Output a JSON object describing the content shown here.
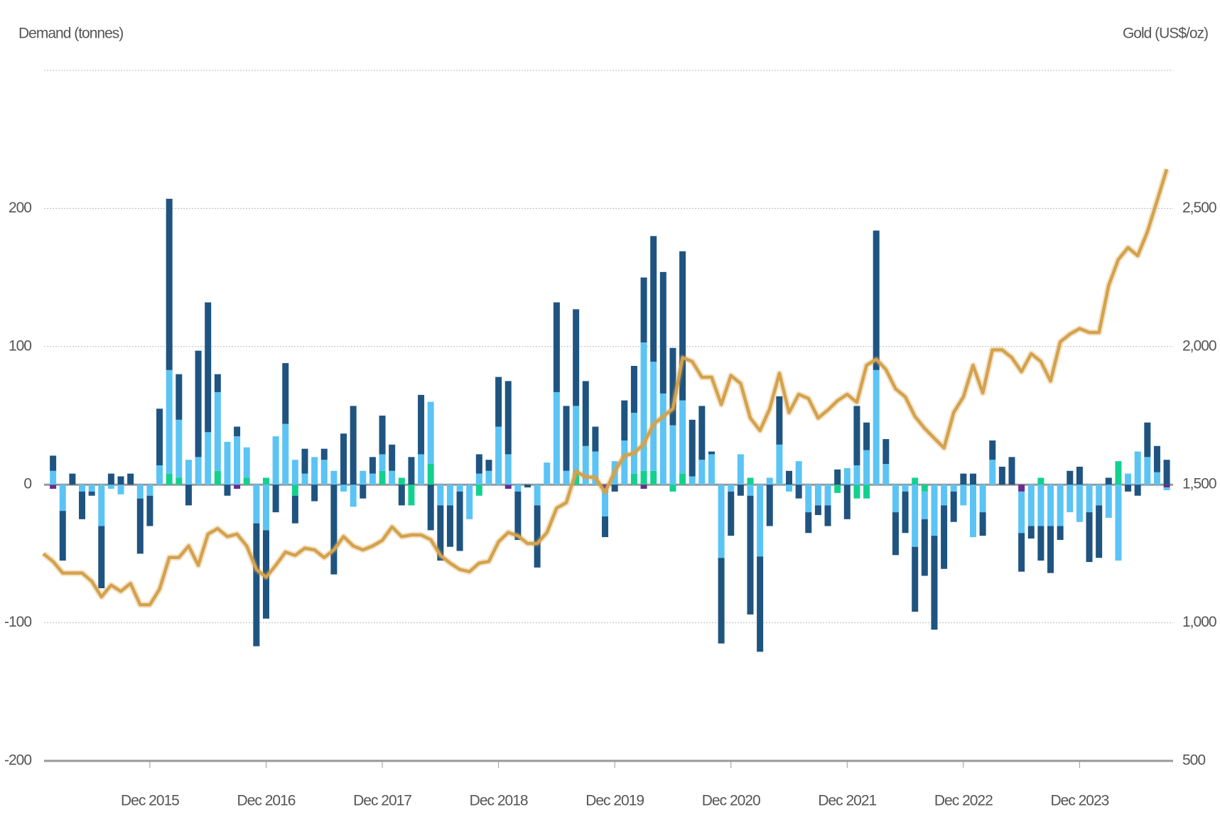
{
  "chart_data": {
    "type": "bar",
    "y_label": "Demand (tonnes)",
    "y2_label": "Gold (US$/oz)",
    "categories": [
      null,
      null,
      null,
      null,
      null,
      null,
      null,
      null,
      null,
      null,
      null,
      "Dec 2015",
      null,
      null,
      null,
      null,
      null,
      null,
      null,
      null,
      null,
      null,
      null,
      "Dec 2016",
      null,
      null,
      null,
      null,
      null,
      null,
      null,
      null,
      null,
      null,
      null,
      "Dec 2017",
      null,
      null,
      null,
      null,
      null,
      null,
      null,
      null,
      null,
      null,
      null,
      "Dec 2018",
      null,
      null,
      null,
      null,
      null,
      null,
      null,
      null,
      null,
      null,
      null,
      "Dec 2019",
      null,
      null,
      null,
      null,
      null,
      null,
      null,
      null,
      null,
      null,
      null,
      "Dec 2020",
      null,
      null,
      null,
      null,
      null,
      null,
      null,
      null,
      null,
      null,
      null,
      "Dec 2021",
      null,
      null,
      null,
      null,
      null,
      null,
      null,
      null,
      null,
      null,
      null,
      "Dec 2022",
      null,
      null,
      null,
      null,
      null,
      null,
      null,
      null,
      null,
      null,
      null,
      "Dec 2023",
      null,
      null,
      null,
      null,
      null,
      null,
      null,
      null,
      null
    ],
    "series": [
      {
        "color": "#6a2c8c",
        "values": [
          0,
          -3,
          0,
          0,
          0,
          0,
          0,
          0,
          0,
          0,
          0,
          0,
          0,
          0,
          0,
          0,
          0,
          0,
          0,
          0,
          -3,
          0,
          0,
          0,
          0,
          0,
          0,
          0,
          0,
          0,
          0,
          0,
          0,
          0,
          0,
          0,
          0,
          0,
          0,
          0,
          0,
          0,
          0,
          0,
          0,
          0,
          0,
          0,
          -3,
          0,
          0,
          0,
          0,
          0,
          0,
          0,
          0,
          0,
          -3,
          0,
          0,
          0,
          -3,
          0,
          0,
          0,
          0,
          0,
          0,
          0,
          0,
          0,
          0,
          0,
          0,
          0,
          0,
          0,
          0,
          0,
          0,
          0,
          0,
          0,
          0,
          0,
          0,
          0,
          0,
          0,
          0,
          0,
          0,
          0,
          0,
          0,
          0,
          0,
          0,
          0,
          0,
          -5,
          0,
          0,
          0,
          0,
          0,
          0,
          0,
          0,
          0,
          0,
          0,
          0,
          0,
          0,
          -2
        ]
      },
      {
        "color": "#12d18e",
        "values": [
          0,
          0,
          0,
          0,
          0,
          0,
          0,
          0,
          0,
          0,
          0,
          0,
          0,
          8,
          5,
          0,
          0,
          0,
          10,
          0,
          0,
          5,
          0,
          5,
          0,
          0,
          -8,
          0,
          0,
          0,
          0,
          0,
          0,
          0,
          0,
          10,
          0,
          5,
          -15,
          0,
          15,
          0,
          0,
          0,
          0,
          -8,
          0,
          0,
          0,
          0,
          0,
          0,
          0,
          0,
          0,
          8,
          0,
          0,
          0,
          0,
          0,
          8,
          10,
          10,
          0,
          -5,
          8,
          0,
          0,
          0,
          0,
          0,
          0,
          5,
          0,
          0,
          0,
          0,
          0,
          0,
          0,
          0,
          -6,
          0,
          -10,
          -10,
          0,
          0,
          0,
          0,
          5,
          -5,
          0,
          0,
          0,
          0,
          0,
          0,
          0,
          0,
          0,
          0,
          0,
          5,
          0,
          0,
          0,
          0,
          0,
          0,
          0,
          17,
          0,
          0,
          0,
          0,
          0
        ]
      },
      {
        "color": "#5bc4f5",
        "values": [
          0,
          10,
          -19,
          0,
          -5,
          -5,
          -30,
          -3,
          -7,
          0,
          -10,
          -8,
          14,
          75,
          42,
          18,
          20,
          38,
          57,
          31,
          35,
          22,
          -28,
          -33,
          35,
          44,
          18,
          8,
          20,
          18,
          10,
          -5,
          -16,
          10,
          8,
          12,
          10,
          0,
          0,
          22,
          45,
          -15,
          -15,
          -5,
          -25,
          8,
          10,
          42,
          22,
          -5,
          0,
          -15,
          16,
          67,
          10,
          49,
          28,
          24,
          -20,
          17,
          32,
          44,
          93,
          79,
          66,
          43,
          53,
          6,
          18,
          22,
          -53,
          -5,
          22,
          -8,
          -52,
          5,
          29,
          -5,
          17,
          -20,
          -15,
          -15,
          0,
          12,
          14,
          25,
          83,
          15,
          -20,
          -5,
          -45,
          -20,
          -37,
          -15,
          -5,
          -15,
          -38,
          -20,
          18,
          0,
          0,
          -30,
          -30,
          -30,
          -30,
          -30,
          -20,
          -27,
          -20,
          -15,
          -24,
          -55,
          8,
          24,
          20,
          9,
          -2
        ]
      },
      {
        "color": "#1f5480",
        "values": [
          0,
          11,
          -36,
          8,
          -20,
          -3,
          -45,
          8,
          6,
          8,
          -40,
          -22,
          41,
          124,
          33,
          -15,
          77,
          94,
          13,
          -8,
          7,
          0,
          -89,
          -64,
          -20,
          44,
          -20,
          18,
          -12,
          8,
          -65,
          37,
          57,
          -10,
          12,
          28,
          19,
          -15,
          20,
          43,
          -33,
          -40,
          -30,
          -43,
          0,
          14,
          8,
          36,
          53,
          -35,
          -2,
          -45,
          0,
          65,
          47,
          70,
          47,
          18,
          -15,
          -5,
          29,
          34,
          47,
          91,
          88,
          56,
          108,
          41,
          39,
          2,
          -62,
          -32,
          -8,
          -86,
          -69,
          -30,
          35,
          10,
          -10,
          -15,
          -7,
          -15,
          11,
          -25,
          43,
          20,
          101,
          18,
          -31,
          -30,
          -47,
          -41,
          -68,
          -46,
          -22,
          8,
          8,
          -17,
          14,
          13,
          20,
          -28,
          -9,
          -25,
          -34,
          -10,
          10,
          13,
          -36,
          -38,
          5,
          0,
          -5,
          -8,
          25,
          19,
          18
        ]
      },
      {
        "type": "line",
        "axis": "y2",
        "color": "#d4a24c",
        "values": [
          1250,
          1222,
          1180,
          1180,
          1180,
          1150,
          1094,
          1136,
          1114,
          1142,
          1065,
          1065,
          1122,
          1236,
          1236,
          1278,
          1208,
          1321,
          1341,
          1312,
          1321,
          1278,
          1193,
          1165,
          1208,
          1256,
          1244,
          1270,
          1264,
          1236,
          1264,
          1312,
          1278,
          1264,
          1278,
          1298,
          1347,
          1312,
          1318,
          1318,
          1301,
          1244,
          1216,
          1193,
          1185,
          1216,
          1222,
          1293,
          1327,
          1315,
          1287,
          1287,
          1327,
          1415,
          1435,
          1548,
          1528,
          1526,
          1472,
          1548,
          1605,
          1614,
          1648,
          1719,
          1747,
          1775,
          1960,
          1946,
          1889,
          1889,
          1790,
          1895,
          1866,
          1741,
          1696,
          1775,
          1903,
          1761,
          1827,
          1812,
          1741,
          1770,
          1804,
          1827,
          1798,
          1932,
          1954,
          1917,
          1847,
          1818,
          1747,
          1704,
          1668,
          1633,
          1761,
          1818,
          1932,
          1832,
          1988,
          1988,
          1960,
          1909,
          1974,
          1946,
          1875,
          2017,
          2045,
          2065,
          2051,
          2051,
          2221,
          2315,
          2358,
          2329,
          2415,
          2528,
          2642
        ]
      }
    ],
    "ylim": [
      -200,
      300
    ],
    "yticks": [
      -200,
      -100,
      0,
      100,
      200
    ],
    "y2lim": [
      500,
      3000
    ],
    "y2ticks": [
      500,
      {
        "value": 1000,
        "label": "1,000"
      },
      {
        "value": 1500,
        "label": "1,500"
      },
      {
        "value": 2000,
        "label": "2,000"
      },
      {
        "value": 2500,
        "label": "2,500"
      }
    ],
    "grid": true
  }
}
